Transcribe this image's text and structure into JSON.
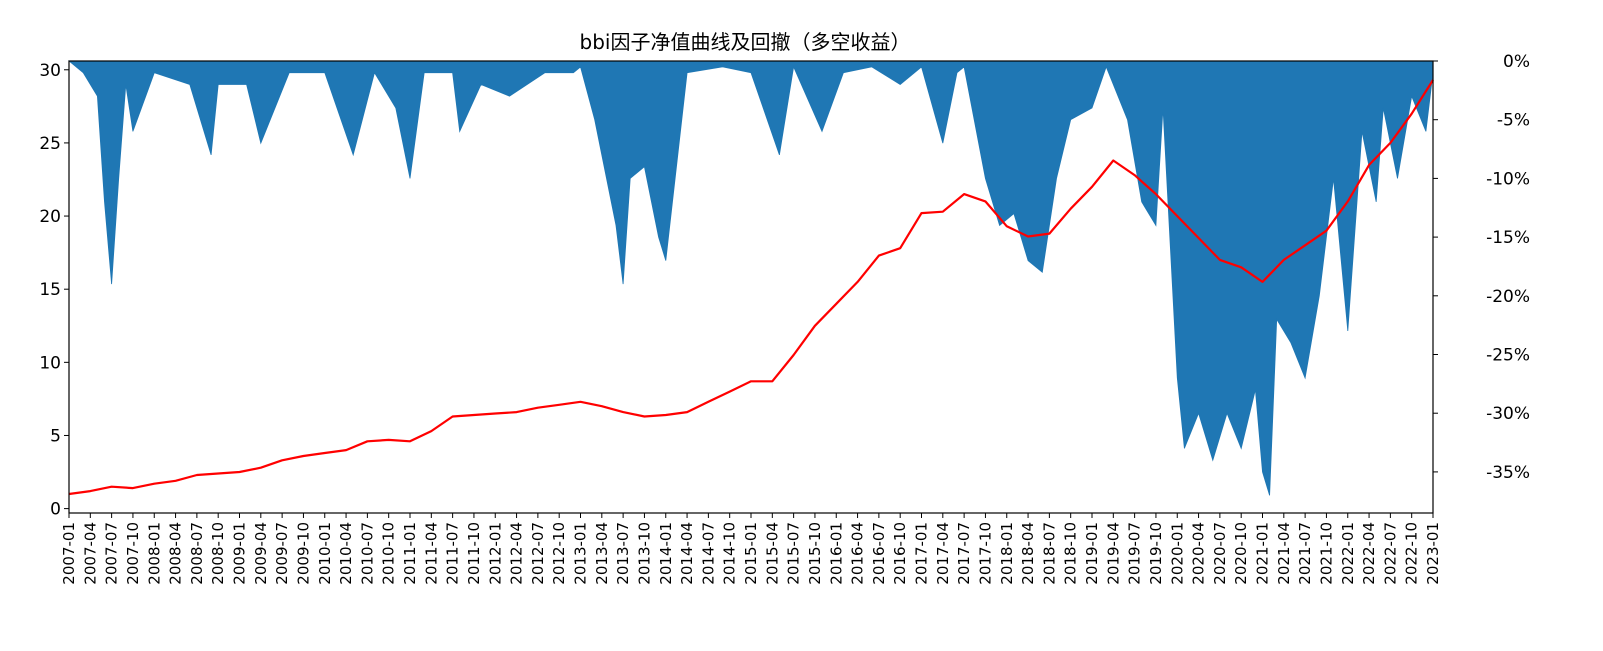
{
  "chart_data": {
    "type": "line",
    "title": "bbi因子净值曲线及回撤（多空收益）",
    "xlabel": "",
    "ylabel": "",
    "grid": false,
    "legend": "none",
    "colors": {
      "nav": "#ff0000",
      "drawdown": "#1f77b4"
    },
    "x_ticks": [
      "2007-01",
      "2007-04",
      "2007-07",
      "2007-10",
      "2008-01",
      "2008-04",
      "2008-07",
      "2008-10",
      "2009-01",
      "2009-04",
      "2009-07",
      "2009-10",
      "2010-01",
      "2010-04",
      "2010-07",
      "2010-10",
      "2011-01",
      "2011-04",
      "2011-07",
      "2011-10",
      "2012-01",
      "2012-04",
      "2012-07",
      "2012-10",
      "2013-01",
      "2013-04",
      "2013-07",
      "2013-10",
      "2014-01",
      "2014-04",
      "2014-07",
      "2014-10",
      "2015-01",
      "2015-04",
      "2015-07",
      "2015-10",
      "2016-01",
      "2016-04",
      "2016-07",
      "2016-10",
      "2017-01",
      "2017-04",
      "2017-07",
      "2017-10",
      "2018-01",
      "2018-04",
      "2018-07",
      "2018-10",
      "2019-01",
      "2019-04",
      "2019-07",
      "2019-10",
      "2020-01",
      "2020-04",
      "2020-07",
      "2020-10",
      "2021-01",
      "2021-04",
      "2021-07",
      "2021-10",
      "2022-01",
      "2022-04",
      "2022-07",
      "2022-10",
      "2023-01"
    ],
    "x_range": [
      "2007-01",
      "2023-01"
    ],
    "y_left": {
      "ticks": [
        "0",
        "5",
        "10",
        "15",
        "20",
        "25",
        "30"
      ],
      "ylim": [
        -0.3,
        30.6
      ]
    },
    "y_right": {
      "ticks": [
        "0%",
        "-5%",
        "-10%",
        "-15%",
        "-20%",
        "-25%",
        "-30%",
        "-35%"
      ],
      "ylim": [
        -0.385,
        0.0
      ]
    },
    "series": [
      {
        "role": "nav",
        "axis": "left",
        "x": [
          "2007-01",
          "2007-04",
          "2007-07",
          "2007-10",
          "2008-01",
          "2008-04",
          "2008-07",
          "2008-10",
          "2009-01",
          "2009-04",
          "2009-07",
          "2009-10",
          "2010-01",
          "2010-04",
          "2010-07",
          "2010-10",
          "2011-01",
          "2011-04",
          "2011-07",
          "2011-10",
          "2012-01",
          "2012-04",
          "2012-07",
          "2012-10",
          "2013-01",
          "2013-04",
          "2013-07",
          "2013-10",
          "2014-01",
          "2014-04",
          "2014-07",
          "2014-10",
          "2015-01",
          "2015-04",
          "2015-07",
          "2015-10",
          "2016-01",
          "2016-04",
          "2016-07",
          "2016-10",
          "2017-01",
          "2017-04",
          "2017-07",
          "2017-10",
          "2018-01",
          "2018-04",
          "2018-07",
          "2018-10",
          "2019-01",
          "2019-04",
          "2019-07",
          "2019-10",
          "2020-01",
          "2020-04",
          "2020-07",
          "2020-10",
          "2021-01",
          "2021-04",
          "2021-07",
          "2021-10",
          "2022-01",
          "2022-04",
          "2022-07",
          "2022-10",
          "2023-01"
        ],
        "values": [
          1.0,
          1.2,
          1.5,
          1.4,
          1.7,
          1.9,
          2.3,
          2.4,
          2.5,
          2.8,
          3.3,
          3.6,
          3.8,
          4.0,
          4.6,
          4.7,
          4.6,
          5.3,
          6.3,
          6.4,
          6.5,
          6.6,
          6.9,
          7.1,
          7.3,
          7.0,
          6.6,
          6.3,
          6.4,
          6.6,
          7.3,
          8.0,
          8.7,
          8.7,
          10.5,
          12.5,
          14.0,
          15.5,
          17.3,
          17.8,
          20.2,
          20.3,
          21.5,
          21.0,
          19.3,
          18.6,
          18.8,
          20.5,
          22.0,
          23.8,
          22.8,
          21.5,
          20.0,
          18.5,
          17.0,
          16.5,
          15.5,
          17.0,
          18.0,
          19.0,
          21.0,
          23.5,
          25.0,
          27.0,
          29.3
        ]
      },
      {
        "role": "drawdown",
        "axis": "right",
        "x": [
          "2007-01",
          "2007-03",
          "2007-05",
          "2007-06",
          "2007-07",
          "2007-08",
          "2007-09",
          "2007-10",
          "2008-01",
          "2008-06",
          "2008-09",
          "2008-10",
          "2009-02",
          "2009-04",
          "2009-08",
          "2010-01",
          "2010-05",
          "2010-08",
          "2010-11",
          "2011-01",
          "2011-03",
          "2011-07",
          "2011-08",
          "2011-11",
          "2012-03",
          "2012-08",
          "2012-12",
          "2013-01",
          "2013-03",
          "2013-06",
          "2013-07",
          "2013-08",
          "2013-10",
          "2013-12",
          "2014-01",
          "2014-04",
          "2014-09",
          "2015-01",
          "2015-05",
          "2015-07",
          "2015-11",
          "2016-02",
          "2016-06",
          "2016-10",
          "2017-01",
          "2017-04",
          "2017-06",
          "2017-07",
          "2017-10",
          "2017-12",
          "2018-02",
          "2018-04",
          "2018-06",
          "2018-08",
          "2018-10",
          "2019-01",
          "2019-03",
          "2019-06",
          "2019-08",
          "2019-10",
          "2019-11",
          "2020-01",
          "2020-02",
          "2020-04",
          "2020-06",
          "2020-08",
          "2020-10",
          "2020-12",
          "2021-01",
          "2021-02",
          "2021-03",
          "2021-05",
          "2021-07",
          "2021-09",
          "2021-11",
          "2022-01",
          "2022-03",
          "2022-05",
          "2022-06",
          "2022-08",
          "2022-10",
          "2022-12",
          "2023-01"
        ],
        "values": [
          0.0,
          -0.01,
          -0.03,
          -0.12,
          -0.19,
          -0.1,
          -0.02,
          -0.06,
          -0.01,
          -0.02,
          -0.08,
          -0.02,
          -0.02,
          -0.07,
          -0.01,
          -0.01,
          -0.08,
          -0.01,
          -0.04,
          -0.1,
          -0.01,
          -0.01,
          -0.06,
          -0.02,
          -0.03,
          -0.01,
          -0.01,
          -0.005,
          -0.05,
          -0.14,
          -0.19,
          -0.1,
          -0.09,
          -0.15,
          -0.17,
          -0.01,
          -0.005,
          -0.01,
          -0.08,
          -0.005,
          -0.06,
          -0.01,
          -0.005,
          -0.02,
          -0.005,
          -0.07,
          -0.01,
          -0.005,
          -0.1,
          -0.14,
          -0.13,
          -0.17,
          -0.18,
          -0.1,
          -0.05,
          -0.04,
          -0.005,
          -0.05,
          -0.12,
          -0.14,
          -0.04,
          -0.27,
          -0.33,
          -0.3,
          -0.34,
          -0.3,
          -0.33,
          -0.28,
          -0.35,
          -0.37,
          -0.22,
          -0.24,
          -0.27,
          -0.2,
          -0.1,
          -0.23,
          -0.06,
          -0.12,
          -0.04,
          -0.1,
          -0.03,
          -0.06,
          -0.01
        ]
      }
    ]
  }
}
